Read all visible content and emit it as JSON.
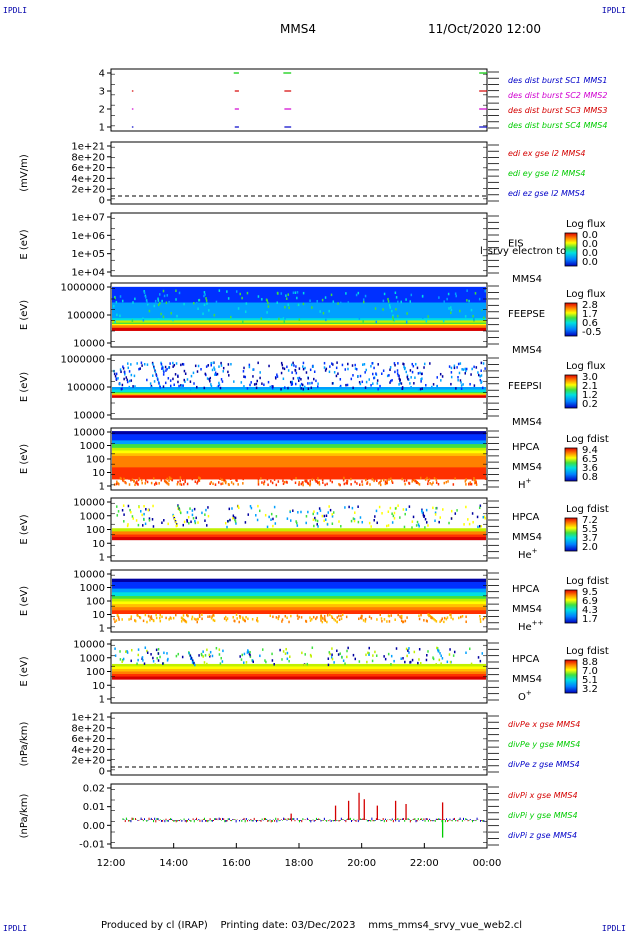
{
  "corner_label": "IPDLI",
  "header": {
    "spacecraft": "MMS4",
    "datetime": "11/Oct/2020 12:00"
  },
  "footer": "Produced by cl (IRAP)    Printing date: 03/Dec/2023    mms_mms4_srvy_vue_web2.cl",
  "colors": {
    "red": "#d40000",
    "green": "#00cc00",
    "blue": "#0000c8",
    "magenta": "#d000d0"
  },
  "chart_data": {
    "type": "stacked-panels",
    "x_axis": {
      "range": [
        "12:00",
        "00:00"
      ],
      "ticks": [
        "12:00",
        "14:00",
        "16:00",
        "18:00",
        "20:00",
        "22:00",
        "00:00"
      ]
    },
    "panels": [
      {
        "id": "burst",
        "y_ticks": [
          "4",
          "3",
          "2",
          "1"
        ],
        "ylabel": "",
        "legend": [
          {
            "text": "des dist burst SC1 MMS1",
            "color": "#0000c8"
          },
          {
            "text": "des dist burst SC2 MMS2",
            "color": "#d000d0"
          },
          {
            "text": "des dist burst SC3 MMS3",
            "color": "#d40000"
          },
          {
            "text": "des dist burst SC4 MMS4",
            "color": "#00cc00"
          }
        ],
        "intervals": [
          {
            "y": 4,
            "start": "15:55",
            "end": "16:05",
            "color": "#00cc00"
          },
          {
            "y": 4,
            "start": "17:30",
            "end": "17:45",
            "color": "#00cc00"
          },
          {
            "y": 4,
            "start": "23:45",
            "end": "00:00",
            "color": "#00cc00"
          },
          {
            "y": 3,
            "start": "12:40",
            "end": "12:42",
            "color": "#d40000"
          },
          {
            "y": 3,
            "start": "15:57",
            "end": "16:05",
            "color": "#d40000"
          },
          {
            "y": 3,
            "start": "17:32",
            "end": "17:45",
            "color": "#d40000"
          },
          {
            "y": 3,
            "start": "23:45",
            "end": "00:00",
            "color": "#d40000"
          },
          {
            "y": 2,
            "start": "12:40",
            "end": "12:42",
            "color": "#d000d0"
          },
          {
            "y": 2,
            "start": "15:57",
            "end": "16:05",
            "color": "#d000d0"
          },
          {
            "y": 2,
            "start": "17:32",
            "end": "17:45",
            "color": "#d000d0"
          },
          {
            "y": 2,
            "start": "23:45",
            "end": "00:00",
            "color": "#d000d0"
          },
          {
            "y": 1,
            "start": "12:40",
            "end": "12:42",
            "color": "#0000c8"
          },
          {
            "y": 1,
            "start": "15:57",
            "end": "16:05",
            "color": "#0000c8"
          },
          {
            "y": 1,
            "start": "17:32",
            "end": "17:45",
            "color": "#0000c8"
          },
          {
            "y": 1,
            "start": "23:45",
            "end": "00:00",
            "color": "#0000c8"
          }
        ]
      },
      {
        "id": "edi",
        "ylabel": "(mV/m)",
        "y_ticks": [
          "1e+21",
          "8e+20",
          "6e+20",
          "4e+20",
          "2e+20",
          "0"
        ],
        "dashed_zero": true,
        "legend": [
          {
            "text": "edi ex gse l2 MMS4",
            "color": "#d40000"
          },
          {
            "text": "edi ey gse l2 MMS4",
            "color": "#00cc00"
          },
          {
            "text": "edi ez gse l2 MMS4",
            "color": "#0000c8"
          }
        ]
      },
      {
        "id": "eis",
        "ylabel": "E (eV)",
        "y_ticks": [
          "1e+07",
          "1e+06",
          "1e+05",
          "1e+04"
        ],
        "labels": [
          "EIS",
          "MMS4"
        ],
        "overlay_text": "l_srvy electron to",
        "colorbar": {
          "title": "Log flux",
          "ticks": [
            "0.0",
            "0.0",
            "0.0",
            "0.0"
          ]
        }
      },
      {
        "id": "feepse",
        "ylabel": "E (eV)",
        "y_ticks": [
          "1000000",
          "100000",
          "10000"
        ],
        "labels": [
          "FEEPSE",
          "MMS4"
        ],
        "colorbar": {
          "title": "Log flux",
          "ticks": [
            "2.8",
            "1.7",
            "0.6",
            "-0.5"
          ]
        }
      },
      {
        "id": "feepsi",
        "ylabel": "E (eV)",
        "y_ticks": [
          "1000000",
          "100000",
          "10000"
        ],
        "labels": [
          "FEEPSI",
          "MMS4"
        ],
        "colorbar": {
          "title": "Log flux",
          "ticks": [
            "3.0",
            "2.1",
            "1.2",
            "0.2"
          ]
        }
      },
      {
        "id": "hpca_h",
        "ylabel": "E (eV)",
        "y_ticks": [
          "10000",
          "1000",
          "100",
          "10",
          "1"
        ],
        "labels": [
          "HPCA",
          "MMS4"
        ],
        "species": {
          "base": "H",
          "sup": "+"
        },
        "colorbar": {
          "title": "Log fdist",
          "ticks": [
            "9.4",
            "6.5",
            "3.6",
            "0.8"
          ]
        }
      },
      {
        "id": "hpca_he",
        "ylabel": "E (eV)",
        "y_ticks": [
          "10000",
          "1000",
          "100",
          "10",
          "1"
        ],
        "labels": [
          "HPCA",
          "MMS4"
        ],
        "species": {
          "base": "He",
          "sup": "+"
        },
        "colorbar": {
          "title": "Log fdist",
          "ticks": [
            "7.2",
            "5.5",
            "3.7",
            "2.0"
          ]
        }
      },
      {
        "id": "hpca_he2",
        "ylabel": "E (eV)",
        "y_ticks": [
          "10000",
          "1000",
          "100",
          "10",
          "1"
        ],
        "labels": [
          "HPCA",
          "MMS4"
        ],
        "species": {
          "base": "He",
          "sup": "++"
        },
        "colorbar": {
          "title": "Log fdist",
          "ticks": [
            "9.5",
            "6.9",
            "4.3",
            "1.7"
          ]
        }
      },
      {
        "id": "hpca_o",
        "ylabel": "E (eV)",
        "y_ticks": [
          "10000",
          "1000",
          "100",
          "10",
          "1"
        ],
        "labels": [
          "HPCA",
          "MMS4"
        ],
        "species": {
          "base": "O",
          "sup": "+"
        },
        "colorbar": {
          "title": "Log fdist",
          "ticks": [
            "8.8",
            "7.0",
            "5.1",
            "3.2"
          ]
        }
      },
      {
        "id": "divpe",
        "ylabel": "(nPa/km)",
        "y_ticks": [
          "1e+21",
          "8e+20",
          "6e+20",
          "4e+20",
          "2e+20",
          "0"
        ],
        "dashed_zero": true,
        "legend": [
          {
            "text": "divPe x gse MMS4",
            "color": "#d40000"
          },
          {
            "text": "divPe y gse MMS4",
            "color": "#00cc00"
          },
          {
            "text": "divPe z gse MMS4",
            "color": "#0000c8"
          }
        ]
      },
      {
        "id": "divpi",
        "ylabel": "(nPa/km)",
        "y_ticks": [
          "0.02",
          "0.01",
          "0.00",
          "-0.01"
        ],
        "ylim": [
          -0.015,
          0.02
        ],
        "legend": [
          {
            "text": "divPi x gse MMS4",
            "color": "#d40000"
          },
          {
            "text": "divPi y gse MMS4",
            "color": "#00cc00"
          },
          {
            "text": "divPi z gse MMS4",
            "color": "#0000c8"
          }
        ],
        "spikes": [
          {
            "time": "17:45",
            "value": 0.004,
            "color": "#d40000"
          },
          {
            "time": "19:10",
            "value": 0.009,
            "color": "#d40000"
          },
          {
            "time": "19:35",
            "value": 0.012,
            "color": "#d40000"
          },
          {
            "time": "19:55",
            "value": 0.017,
            "color": "#d40000"
          },
          {
            "time": "20:05",
            "value": 0.013,
            "color": "#d40000"
          },
          {
            "time": "20:30",
            "value": 0.009,
            "color": "#d40000"
          },
          {
            "time": "21:05",
            "value": 0.012,
            "color": "#d40000"
          },
          {
            "time": "21:25",
            "value": 0.01,
            "color": "#d40000"
          },
          {
            "time": "22:35",
            "value": 0.011,
            "color": "#d40000"
          },
          {
            "time": "22:35",
            "value": -0.011,
            "color": "#00cc00"
          }
        ]
      }
    ]
  }
}
